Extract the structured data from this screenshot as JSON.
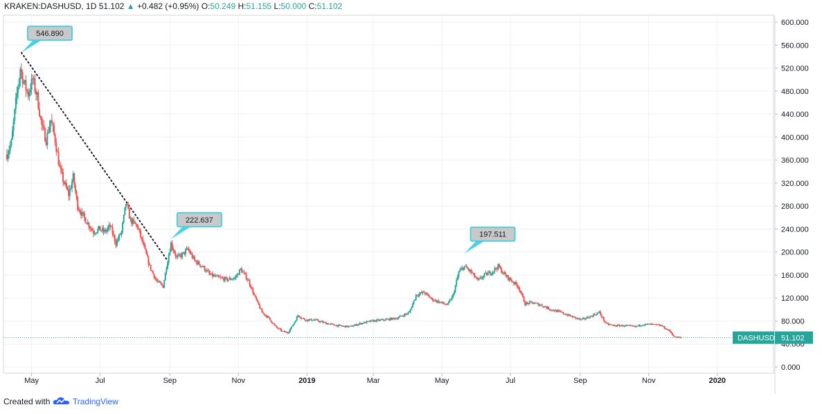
{
  "header": {
    "symbol": "KRAKEN:DASHUSD, 1D",
    "last": "51.102",
    "change": "+0.482 (+0.95%)",
    "o_label": "O:",
    "o_value": "50.249",
    "h_label": "H:",
    "h_value": "51.155",
    "l_label": "L:",
    "l_value": "50.000",
    "c_label": "C:",
    "c_value": "51.102"
  },
  "footer": {
    "created_with": "Created with",
    "brand": "TradingView"
  },
  "colors": {
    "up": "#26a69a",
    "down": "#ef5350",
    "grid": "#eef0f3",
    "callout_border": "#4dd0e1",
    "callout_fill": "#c9c9c9",
    "price_tag": "#26a69a"
  },
  "chart_data": {
    "type": "candlestick",
    "symbol": "KRAKEN:DASHUSD",
    "interval": "1D",
    "ylim": [
      0,
      600
    ],
    "y_ticks": [
      "0.000",
      "40.000",
      "80.000",
      "120.000",
      "160.000",
      "200.000",
      "240.000",
      "280.000",
      "320.000",
      "360.000",
      "400.000",
      "440.000",
      "480.000",
      "520.000",
      "560.000",
      "600.000"
    ],
    "x_ticks": [
      "May",
      "Jul",
      "Sep",
      "Nov",
      "2019",
      "Mar",
      "May",
      "Jul",
      "Sep",
      "Nov",
      "2020"
    ],
    "grid": true,
    "price_tag": {
      "label": "DASHUSD",
      "value": "51.102",
      "price": 51.102
    },
    "callouts": [
      {
        "label": "546.890",
        "date": "2018-04-22",
        "price": 546.89
      },
      {
        "label": "222.637",
        "date": "2018-09-02",
        "price": 222.637
      },
      {
        "label": "197.511",
        "date": "2019-05-21",
        "price": 197.511
      }
    ],
    "trendline": {
      "from": {
        "date": "2018-04-22",
        "price": 546.89
      },
      "to": {
        "date": "2018-08-30",
        "price": 185
      }
    },
    "close_path": [
      {
        "date": "2018-04-09",
        "price": 370
      },
      {
        "date": "2018-04-13",
        "price": 390
      },
      {
        "date": "2018-04-17",
        "price": 460
      },
      {
        "date": "2018-04-21",
        "price": 520
      },
      {
        "date": "2018-04-24",
        "price": 495
      },
      {
        "date": "2018-04-28",
        "price": 475
      },
      {
        "date": "2018-05-02",
        "price": 500
      },
      {
        "date": "2018-05-06",
        "price": 470
      },
      {
        "date": "2018-05-10",
        "price": 420
      },
      {
        "date": "2018-05-14",
        "price": 395
      },
      {
        "date": "2018-05-18",
        "price": 430
      },
      {
        "date": "2018-05-22",
        "price": 395
      },
      {
        "date": "2018-05-26",
        "price": 345
      },
      {
        "date": "2018-05-30",
        "price": 320
      },
      {
        "date": "2018-06-03",
        "price": 300
      },
      {
        "date": "2018-06-07",
        "price": 330
      },
      {
        "date": "2018-06-11",
        "price": 280
      },
      {
        "date": "2018-06-15",
        "price": 265
      },
      {
        "date": "2018-06-20",
        "price": 250
      },
      {
        "date": "2018-06-25",
        "price": 235
      },
      {
        "date": "2018-06-30",
        "price": 240
      },
      {
        "date": "2018-07-05",
        "price": 235
      },
      {
        "date": "2018-07-10",
        "price": 245
      },
      {
        "date": "2018-07-15",
        "price": 215
      },
      {
        "date": "2018-07-20",
        "price": 235
      },
      {
        "date": "2018-07-24",
        "price": 285
      },
      {
        "date": "2018-07-28",
        "price": 255
      },
      {
        "date": "2018-08-03",
        "price": 245
      },
      {
        "date": "2018-08-08",
        "price": 215
      },
      {
        "date": "2018-08-14",
        "price": 175
      },
      {
        "date": "2018-08-20",
        "price": 150
      },
      {
        "date": "2018-08-26",
        "price": 140
      },
      {
        "date": "2018-08-29",
        "price": 175
      },
      {
        "date": "2018-09-02",
        "price": 215
      },
      {
        "date": "2018-09-07",
        "price": 190
      },
      {
        "date": "2018-09-12",
        "price": 195
      },
      {
        "date": "2018-09-17",
        "price": 205
      },
      {
        "date": "2018-09-23",
        "price": 185
      },
      {
        "date": "2018-09-30",
        "price": 175
      },
      {
        "date": "2018-10-07",
        "price": 160
      },
      {
        "date": "2018-10-15",
        "price": 155
      },
      {
        "date": "2018-10-22",
        "price": 152
      },
      {
        "date": "2018-10-29",
        "price": 155
      },
      {
        "date": "2018-11-03",
        "price": 170
      },
      {
        "date": "2018-11-10",
        "price": 150
      },
      {
        "date": "2018-11-16",
        "price": 120
      },
      {
        "date": "2018-11-22",
        "price": 95
      },
      {
        "date": "2018-11-28",
        "price": 85
      },
      {
        "date": "2018-12-04",
        "price": 70
      },
      {
        "date": "2018-12-10",
        "price": 62
      },
      {
        "date": "2018-12-15",
        "price": 60
      },
      {
        "date": "2018-12-20",
        "price": 75
      },
      {
        "date": "2018-12-24",
        "price": 90
      },
      {
        "date": "2018-12-30",
        "price": 82
      },
      {
        "date": "2019-01-08",
        "price": 82
      },
      {
        "date": "2019-01-18",
        "price": 76
      },
      {
        "date": "2019-01-28",
        "price": 72
      },
      {
        "date": "2019-02-08",
        "price": 70
      },
      {
        "date": "2019-02-18",
        "price": 76
      },
      {
        "date": "2019-02-28",
        "price": 80
      },
      {
        "date": "2019-03-10",
        "price": 82
      },
      {
        "date": "2019-03-22",
        "price": 85
      },
      {
        "date": "2019-04-02",
        "price": 95
      },
      {
        "date": "2019-04-08",
        "price": 125
      },
      {
        "date": "2019-04-15",
        "price": 130
      },
      {
        "date": "2019-04-22",
        "price": 118
      },
      {
        "date": "2019-04-30",
        "price": 112
      },
      {
        "date": "2019-05-06",
        "price": 108
      },
      {
        "date": "2019-05-11",
        "price": 125
      },
      {
        "date": "2019-05-16",
        "price": 165
      },
      {
        "date": "2019-05-21",
        "price": 175
      },
      {
        "date": "2019-05-27",
        "price": 165
      },
      {
        "date": "2019-06-02",
        "price": 150
      },
      {
        "date": "2019-06-08",
        "price": 160
      },
      {
        "date": "2019-06-14",
        "price": 165
      },
      {
        "date": "2019-06-20",
        "price": 175
      },
      {
        "date": "2019-06-26",
        "price": 160
      },
      {
        "date": "2019-07-02",
        "price": 150
      },
      {
        "date": "2019-07-08",
        "price": 140
      },
      {
        "date": "2019-07-14",
        "price": 110
      },
      {
        "date": "2019-07-20",
        "price": 112
      },
      {
        "date": "2019-07-28",
        "price": 108
      },
      {
        "date": "2019-08-06",
        "price": 100
      },
      {
        "date": "2019-08-15",
        "price": 95
      },
      {
        "date": "2019-08-24",
        "price": 88
      },
      {
        "date": "2019-09-02",
        "price": 82
      },
      {
        "date": "2019-09-10",
        "price": 88
      },
      {
        "date": "2019-09-18",
        "price": 95
      },
      {
        "date": "2019-09-24",
        "price": 75
      },
      {
        "date": "2019-10-01",
        "price": 72
      },
      {
        "date": "2019-10-10",
        "price": 72
      },
      {
        "date": "2019-10-20",
        "price": 70
      },
      {
        "date": "2019-10-26",
        "price": 74
      },
      {
        "date": "2019-11-03",
        "price": 74
      },
      {
        "date": "2019-11-12",
        "price": 72
      },
      {
        "date": "2019-11-20",
        "price": 62
      },
      {
        "date": "2019-11-24",
        "price": 52
      },
      {
        "date": "2019-11-30",
        "price": 51.102
      }
    ]
  }
}
